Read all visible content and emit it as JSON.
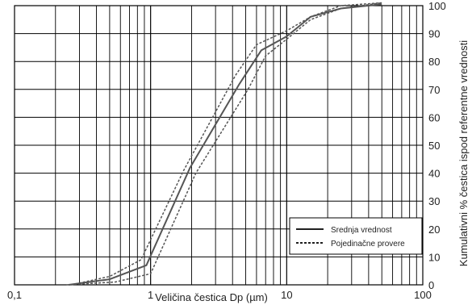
{
  "chart_data": {
    "type": "line",
    "x_scale": "log",
    "xlim": [
      0.1,
      100
    ],
    "ylim": [
      0,
      100
    ],
    "grid": true,
    "legend_position": "bottom-right",
    "xlabel": "Veličina čestica Dp (µm)",
    "ylabel": "Kumulativni % čestica ispod referentne vrednosti",
    "x_tick_labels": [
      "0,1",
      "1",
      "10",
      "100"
    ],
    "y_tick_labels": [
      "0",
      "10",
      "20",
      "30",
      "40",
      "50",
      "60",
      "70",
      "80",
      "90",
      "100"
    ],
    "series": [
      {
        "name": "Srednja vrednost",
        "style": "solid",
        "color": "#555555",
        "points": [
          [
            0.25,
            0
          ],
          [
            0.5,
            2
          ],
          [
            0.93,
            7
          ],
          [
            1.95,
            42
          ],
          [
            4.5,
            72
          ],
          [
            6.5,
            84
          ],
          [
            10,
            89
          ],
          [
            15,
            96
          ],
          [
            25,
            99
          ],
          [
            50,
            100.5
          ]
        ]
      },
      {
        "name": "Pojedinačne provere",
        "style": "dashed",
        "color": "#555555",
        "points": [
          [
            0.26,
            0
          ],
          [
            0.5,
            3
          ],
          [
            0.85,
            9
          ],
          [
            1.75,
            41
          ],
          [
            4.2,
            75
          ],
          [
            6.0,
            86
          ],
          [
            10,
            91
          ],
          [
            15,
            96
          ],
          [
            25,
            100
          ],
          [
            50,
            101
          ]
        ]
      },
      {
        "name": "Pojedinačne provere",
        "style": "dashed",
        "color": "#555555",
        "points": [
          [
            0.24,
            0
          ],
          [
            0.55,
            1
          ],
          [
            1.0,
            4
          ],
          [
            2.15,
            40
          ],
          [
            5.2,
            70
          ],
          [
            7.0,
            82
          ],
          [
            10,
            88
          ],
          [
            15,
            95
          ],
          [
            25,
            99
          ],
          [
            50,
            101
          ]
        ]
      }
    ]
  }
}
